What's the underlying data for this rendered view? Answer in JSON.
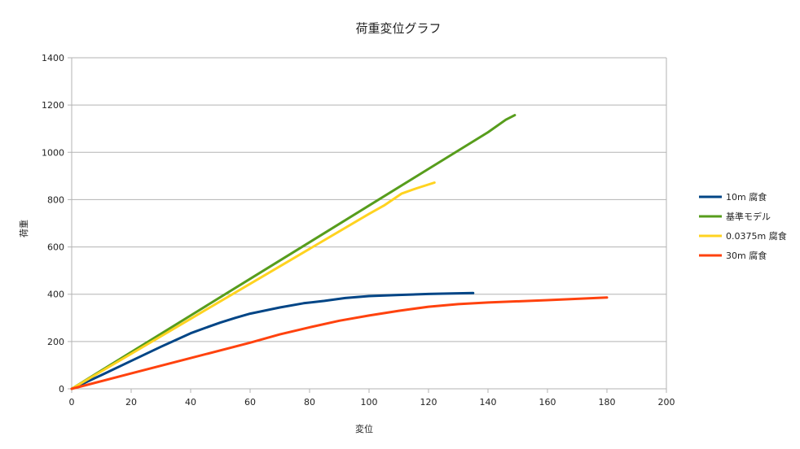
{
  "chart_data": {
    "type": "line",
    "title": "荷重変位グラフ",
    "xlabel": "変位",
    "ylabel": "荷重",
    "xlim": [
      0,
      200
    ],
    "ylim": [
      0,
      1400
    ],
    "xticks": [
      0,
      20,
      40,
      60,
      80,
      100,
      120,
      140,
      160,
      180,
      200
    ],
    "yticks": [
      0,
      200,
      400,
      600,
      800,
      1000,
      1200,
      1400
    ],
    "grid": true,
    "legend_position": "right",
    "series": [
      {
        "name": "10m 腐食",
        "color": "#004586",
        "points": [
          [
            0,
            0
          ],
          [
            10,
            58
          ],
          [
            20,
            118
          ],
          [
            30,
            178
          ],
          [
            40,
            235
          ],
          [
            45,
            258
          ],
          [
            50,
            280
          ],
          [
            55,
            300
          ],
          [
            60,
            318
          ],
          [
            70,
            344
          ],
          [
            78,
            362
          ],
          [
            85,
            372
          ],
          [
            92,
            384
          ],
          [
            100,
            392
          ],
          [
            110,
            397
          ],
          [
            120,
            401
          ],
          [
            128,
            403
          ],
          [
            135,
            405
          ]
        ]
      },
      {
        "name": "基準モデル",
        "color": "#579d1c",
        "points": [
          [
            0,
            0
          ],
          [
            20,
            155
          ],
          [
            40,
            310
          ],
          [
            60,
            465
          ],
          [
            80,
            620
          ],
          [
            100,
            775
          ],
          [
            120,
            930
          ],
          [
            140,
            1085
          ],
          [
            146,
            1138
          ],
          [
            149,
            1157
          ]
        ]
      },
      {
        "name": "0.0375m 腐食",
        "color": "#ffd320",
        "points": [
          [
            0,
            0
          ],
          [
            20,
            148
          ],
          [
            40,
            296
          ],
          [
            60,
            444
          ],
          [
            80,
            592
          ],
          [
            100,
            740
          ],
          [
            105,
            775
          ],
          [
            111,
            826
          ],
          [
            116,
            848
          ],
          [
            122,
            872
          ]
        ]
      },
      {
        "name": "30m 腐食",
        "color": "#ff420e",
        "points": [
          [
            0,
            0
          ],
          [
            20,
            65
          ],
          [
            40,
            130
          ],
          [
            60,
            195
          ],
          [
            70,
            230
          ],
          [
            80,
            260
          ],
          [
            90,
            288
          ],
          [
            100,
            310
          ],
          [
            110,
            330
          ],
          [
            120,
            347
          ],
          [
            130,
            358
          ],
          [
            140,
            365
          ],
          [
            160,
            375
          ],
          [
            180,
            386
          ]
        ]
      }
    ]
  }
}
